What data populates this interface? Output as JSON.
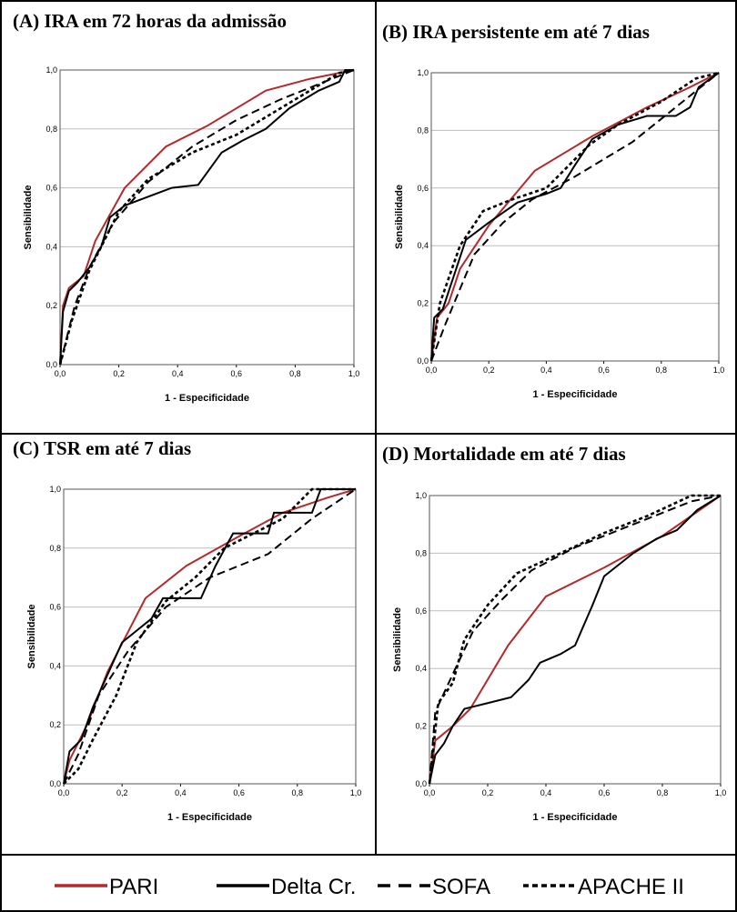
{
  "chart_data": [
    {
      "type": "line",
      "title": "(A) IRA em 72 horas da admissão",
      "x_label": "1 - Especificidade",
      "y_label": "Sensibilidade",
      "xlim": [
        0,
        1
      ],
      "ylim": [
        0,
        1
      ],
      "grid": true,
      "xticks": [
        {
          "value": 0,
          "label": "0,0"
        },
        {
          "value": 0.2,
          "label": "0,2"
        },
        {
          "value": 0.4,
          "label": "0,4"
        },
        {
          "value": 0.6,
          "label": "0,6"
        },
        {
          "value": 0.8,
          "label": "0,8"
        },
        {
          "value": 1,
          "label": "1,0"
        }
      ],
      "yticks": [
        {
          "value": 0,
          "label": "0,0"
        },
        {
          "value": 0.2,
          "label": "0,2"
        },
        {
          "value": 0.4,
          "label": "0,4"
        },
        {
          "value": 0.6,
          "label": "0,6"
        },
        {
          "value": 0.8,
          "label": "0,8"
        },
        {
          "value": 1,
          "label": "1,0"
        }
      ],
      "series": [
        {
          "name": "PARI",
          "color": "#b5292b",
          "dash": "solid",
          "x": [
            0,
            0.01,
            0.03,
            0.08,
            0.12,
            0.22,
            0.36,
            0.5,
            0.7,
            0.85,
            1
          ],
          "values": [
            0,
            0.2,
            0.26,
            0.3,
            0.42,
            0.6,
            0.74,
            0.81,
            0.93,
            0.97,
            1
          ]
        },
        {
          "name": "Delta Cr.",
          "color": "#000000",
          "dash": "solid",
          "x": [
            0,
            0.01,
            0.03,
            0.06,
            0.1,
            0.14,
            0.17,
            0.22,
            0.3,
            0.38,
            0.47,
            0.55,
            0.62,
            0.7,
            0.78,
            0.88,
            0.95,
            0.97,
            1
          ],
          "values": [
            0,
            0.18,
            0.25,
            0.28,
            0.33,
            0.4,
            0.5,
            0.54,
            0.57,
            0.6,
            0.61,
            0.72,
            0.76,
            0.8,
            0.87,
            0.93,
            0.96,
            1,
            1
          ]
        },
        {
          "name": "SOFA",
          "color": "#000000",
          "dash": "dashed",
          "x": [
            0,
            0.05,
            0.1,
            0.18,
            0.3,
            0.45,
            0.6,
            0.75,
            0.9,
            1
          ],
          "values": [
            0,
            0.2,
            0.33,
            0.48,
            0.62,
            0.74,
            0.83,
            0.9,
            0.96,
            1
          ]
        },
        {
          "name": "APACHE II",
          "color": "#000000",
          "dash": "dotted",
          "x": [
            0,
            0.04,
            0.1,
            0.2,
            0.3,
            0.45,
            0.6,
            0.7,
            0.85,
            0.95,
            1
          ],
          "values": [
            0,
            0.15,
            0.32,
            0.52,
            0.63,
            0.72,
            0.78,
            0.84,
            0.93,
            0.99,
            1
          ]
        }
      ]
    },
    {
      "type": "line",
      "title": "(B) IRA persistente em até 7 dias",
      "x_label": "1 - Especificidade",
      "y_label": "Sensibilidade",
      "xlim": [
        0,
        1
      ],
      "ylim": [
        0,
        1
      ],
      "grid": true,
      "xticks": [
        {
          "value": 0,
          "label": "0,0"
        },
        {
          "value": 0.2,
          "label": "0,2"
        },
        {
          "value": 0.4,
          "label": "0,4"
        },
        {
          "value": 0.6,
          "label": "0,6"
        },
        {
          "value": 0.8,
          "label": "0,8"
        },
        {
          "value": 1,
          "label": "1,0"
        }
      ],
      "yticks": [
        {
          "value": 0,
          "label": "0,0"
        },
        {
          "value": 0.2,
          "label": "0,2"
        },
        {
          "value": 0.4,
          "label": "0,4"
        },
        {
          "value": 0.6,
          "label": "0,6"
        },
        {
          "value": 0.8,
          "label": "0,8"
        },
        {
          "value": 1,
          "label": "1,0"
        }
      ],
      "series": [
        {
          "name": "PARI",
          "color": "#b5292b",
          "dash": "solid",
          "x": [
            0,
            0.02,
            0.06,
            0.1,
            0.2,
            0.36,
            0.56,
            0.75,
            0.9,
            1
          ],
          "values": [
            0,
            0.15,
            0.2,
            0.32,
            0.47,
            0.66,
            0.78,
            0.88,
            0.95,
            1
          ]
        },
        {
          "name": "Delta Cr.",
          "color": "#000000",
          "dash": "solid",
          "x": [
            0,
            0.01,
            0.04,
            0.08,
            0.12,
            0.2,
            0.3,
            0.4,
            0.45,
            0.5,
            0.56,
            0.65,
            0.75,
            0.85,
            0.9,
            0.93,
            1
          ],
          "values": [
            0,
            0.15,
            0.18,
            0.3,
            0.42,
            0.48,
            0.55,
            0.58,
            0.6,
            0.68,
            0.77,
            0.82,
            0.85,
            0.85,
            0.88,
            0.95,
            1
          ]
        },
        {
          "name": "SOFA",
          "color": "#000000",
          "dash": "dashed",
          "x": [
            0,
            0.05,
            0.15,
            0.25,
            0.35,
            0.5,
            0.7,
            0.85,
            1
          ],
          "values": [
            0,
            0.13,
            0.37,
            0.48,
            0.56,
            0.64,
            0.76,
            0.88,
            1
          ]
        },
        {
          "name": "APACHE II",
          "color": "#000000",
          "dash": "dotted",
          "x": [
            0,
            0.03,
            0.1,
            0.18,
            0.28,
            0.4,
            0.55,
            0.65,
            0.8,
            0.92,
            1
          ],
          "values": [
            0,
            0.2,
            0.4,
            0.52,
            0.56,
            0.6,
            0.75,
            0.82,
            0.9,
            0.98,
            1
          ]
        }
      ]
    },
    {
      "type": "line",
      "title": "(C) TSR em até 7 dias",
      "x_label": "1 - Especificidade",
      "y_label": "Sensibilidade",
      "xlim": [
        0,
        1
      ],
      "ylim": [
        0,
        1
      ],
      "grid": true,
      "xticks": [
        {
          "value": 0,
          "label": "0,0"
        },
        {
          "value": 0.2,
          "label": "0,2"
        },
        {
          "value": 0.4,
          "label": "0,4"
        },
        {
          "value": 0.6,
          "label": "0,6"
        },
        {
          "value": 0.8,
          "label": "0,8"
        },
        {
          "value": 1,
          "label": "1,0"
        }
      ],
      "yticks": [
        {
          "value": 0,
          "label": "0,0"
        },
        {
          "value": 0.2,
          "label": "0,2"
        },
        {
          "value": 0.4,
          "label": "0,4"
        },
        {
          "value": 0.6,
          "label": "0,6"
        },
        {
          "value": 0.8,
          "label": "0,8"
        },
        {
          "value": 1,
          "label": "1,0"
        }
      ],
      "series": [
        {
          "name": "PARI",
          "color": "#b5292b",
          "dash": "solid",
          "x": [
            0,
            0.02,
            0.08,
            0.15,
            0.28,
            0.42,
            0.6,
            0.75,
            0.9,
            1
          ],
          "values": [
            0,
            0.08,
            0.2,
            0.38,
            0.63,
            0.74,
            0.84,
            0.92,
            0.97,
            1
          ]
        },
        {
          "name": "Delta Cr.",
          "color": "#000000",
          "dash": "solid",
          "x": [
            0,
            0.02,
            0.06,
            0.1,
            0.15,
            0.2,
            0.25,
            0.3,
            0.34,
            0.47,
            0.52,
            0.58,
            0.7,
            0.72,
            0.85,
            0.88,
            1
          ],
          "values": [
            0,
            0.11,
            0.15,
            0.26,
            0.37,
            0.48,
            0.52,
            0.56,
            0.63,
            0.63,
            0.74,
            0.85,
            0.85,
            0.92,
            0.92,
            1,
            1
          ]
        },
        {
          "name": "SOFA",
          "color": "#000000",
          "dash": "dashed",
          "x": [
            0,
            0.05,
            0.12,
            0.22,
            0.35,
            0.5,
            0.7,
            0.85,
            1
          ],
          "values": [
            0,
            0.1,
            0.3,
            0.45,
            0.6,
            0.7,
            0.78,
            0.9,
            1
          ]
        },
        {
          "name": "APACHE II",
          "color": "#000000",
          "dash": "dotted",
          "x": [
            0,
            0.05,
            0.1,
            0.18,
            0.25,
            0.35,
            0.45,
            0.55,
            0.65,
            0.75,
            0.85,
            1
          ],
          "values": [
            0,
            0.05,
            0.15,
            0.3,
            0.48,
            0.62,
            0.7,
            0.8,
            0.85,
            0.9,
            1,
            1
          ]
        }
      ]
    },
    {
      "type": "line",
      "title": "(D) Mortalidade em até 7 dias",
      "x_label": "1 - Especificidade",
      "y_label": "Sensibilidade",
      "xlim": [
        0,
        1
      ],
      "ylim": [
        0,
        1
      ],
      "grid": true,
      "xticks": [
        {
          "value": 0,
          "label": "0,0"
        },
        {
          "value": 0.2,
          "label": "0,2"
        },
        {
          "value": 0.4,
          "label": "0,4"
        },
        {
          "value": 0.6,
          "label": "0,6"
        },
        {
          "value": 0.8,
          "label": "0,8"
        },
        {
          "value": 1,
          "label": "1,0"
        }
      ],
      "yticks": [
        {
          "value": 0,
          "label": "0,0"
        },
        {
          "value": 0.2,
          "label": "0,2"
        },
        {
          "value": 0.4,
          "label": "0,4"
        },
        {
          "value": 0.6,
          "label": "0,6"
        },
        {
          "value": 0.8,
          "label": "0,8"
        },
        {
          "value": 1,
          "label": "1,0"
        }
      ],
      "series": [
        {
          "name": "PARI",
          "color": "#b5292b",
          "dash": "solid",
          "x": [
            0,
            0.02,
            0.08,
            0.14,
            0.27,
            0.4,
            0.6,
            0.8,
            1
          ],
          "values": [
            0,
            0.15,
            0.2,
            0.26,
            0.48,
            0.65,
            0.75,
            0.86,
            1
          ]
        },
        {
          "name": "Delta Cr.",
          "color": "#000000",
          "dash": "solid",
          "x": [
            0,
            0.02,
            0.05,
            0.08,
            0.12,
            0.2,
            0.28,
            0.34,
            0.38,
            0.45,
            0.5,
            0.56,
            0.6,
            0.7,
            0.78,
            0.85,
            0.92,
            1
          ],
          "values": [
            0,
            0.1,
            0.14,
            0.2,
            0.26,
            0.28,
            0.3,
            0.36,
            0.42,
            0.45,
            0.48,
            0.62,
            0.72,
            0.8,
            0.85,
            0.88,
            0.95,
            1
          ]
        },
        {
          "name": "SOFA",
          "color": "#000000",
          "dash": "dashed",
          "x": [
            0,
            0.02,
            0.08,
            0.15,
            0.25,
            0.35,
            0.5,
            0.7,
            0.9,
            1
          ],
          "values": [
            0,
            0.25,
            0.38,
            0.53,
            0.64,
            0.74,
            0.82,
            0.9,
            0.98,
            1
          ]
        },
        {
          "name": "APACHE II",
          "color": "#000000",
          "dash": "dotted",
          "x": [
            0,
            0.03,
            0.08,
            0.12,
            0.2,
            0.3,
            0.45,
            0.6,
            0.75,
            0.9,
            1
          ],
          "values": [
            0,
            0.28,
            0.35,
            0.5,
            0.62,
            0.73,
            0.8,
            0.87,
            0.93,
            1,
            1
          ]
        }
      ]
    }
  ]
}
